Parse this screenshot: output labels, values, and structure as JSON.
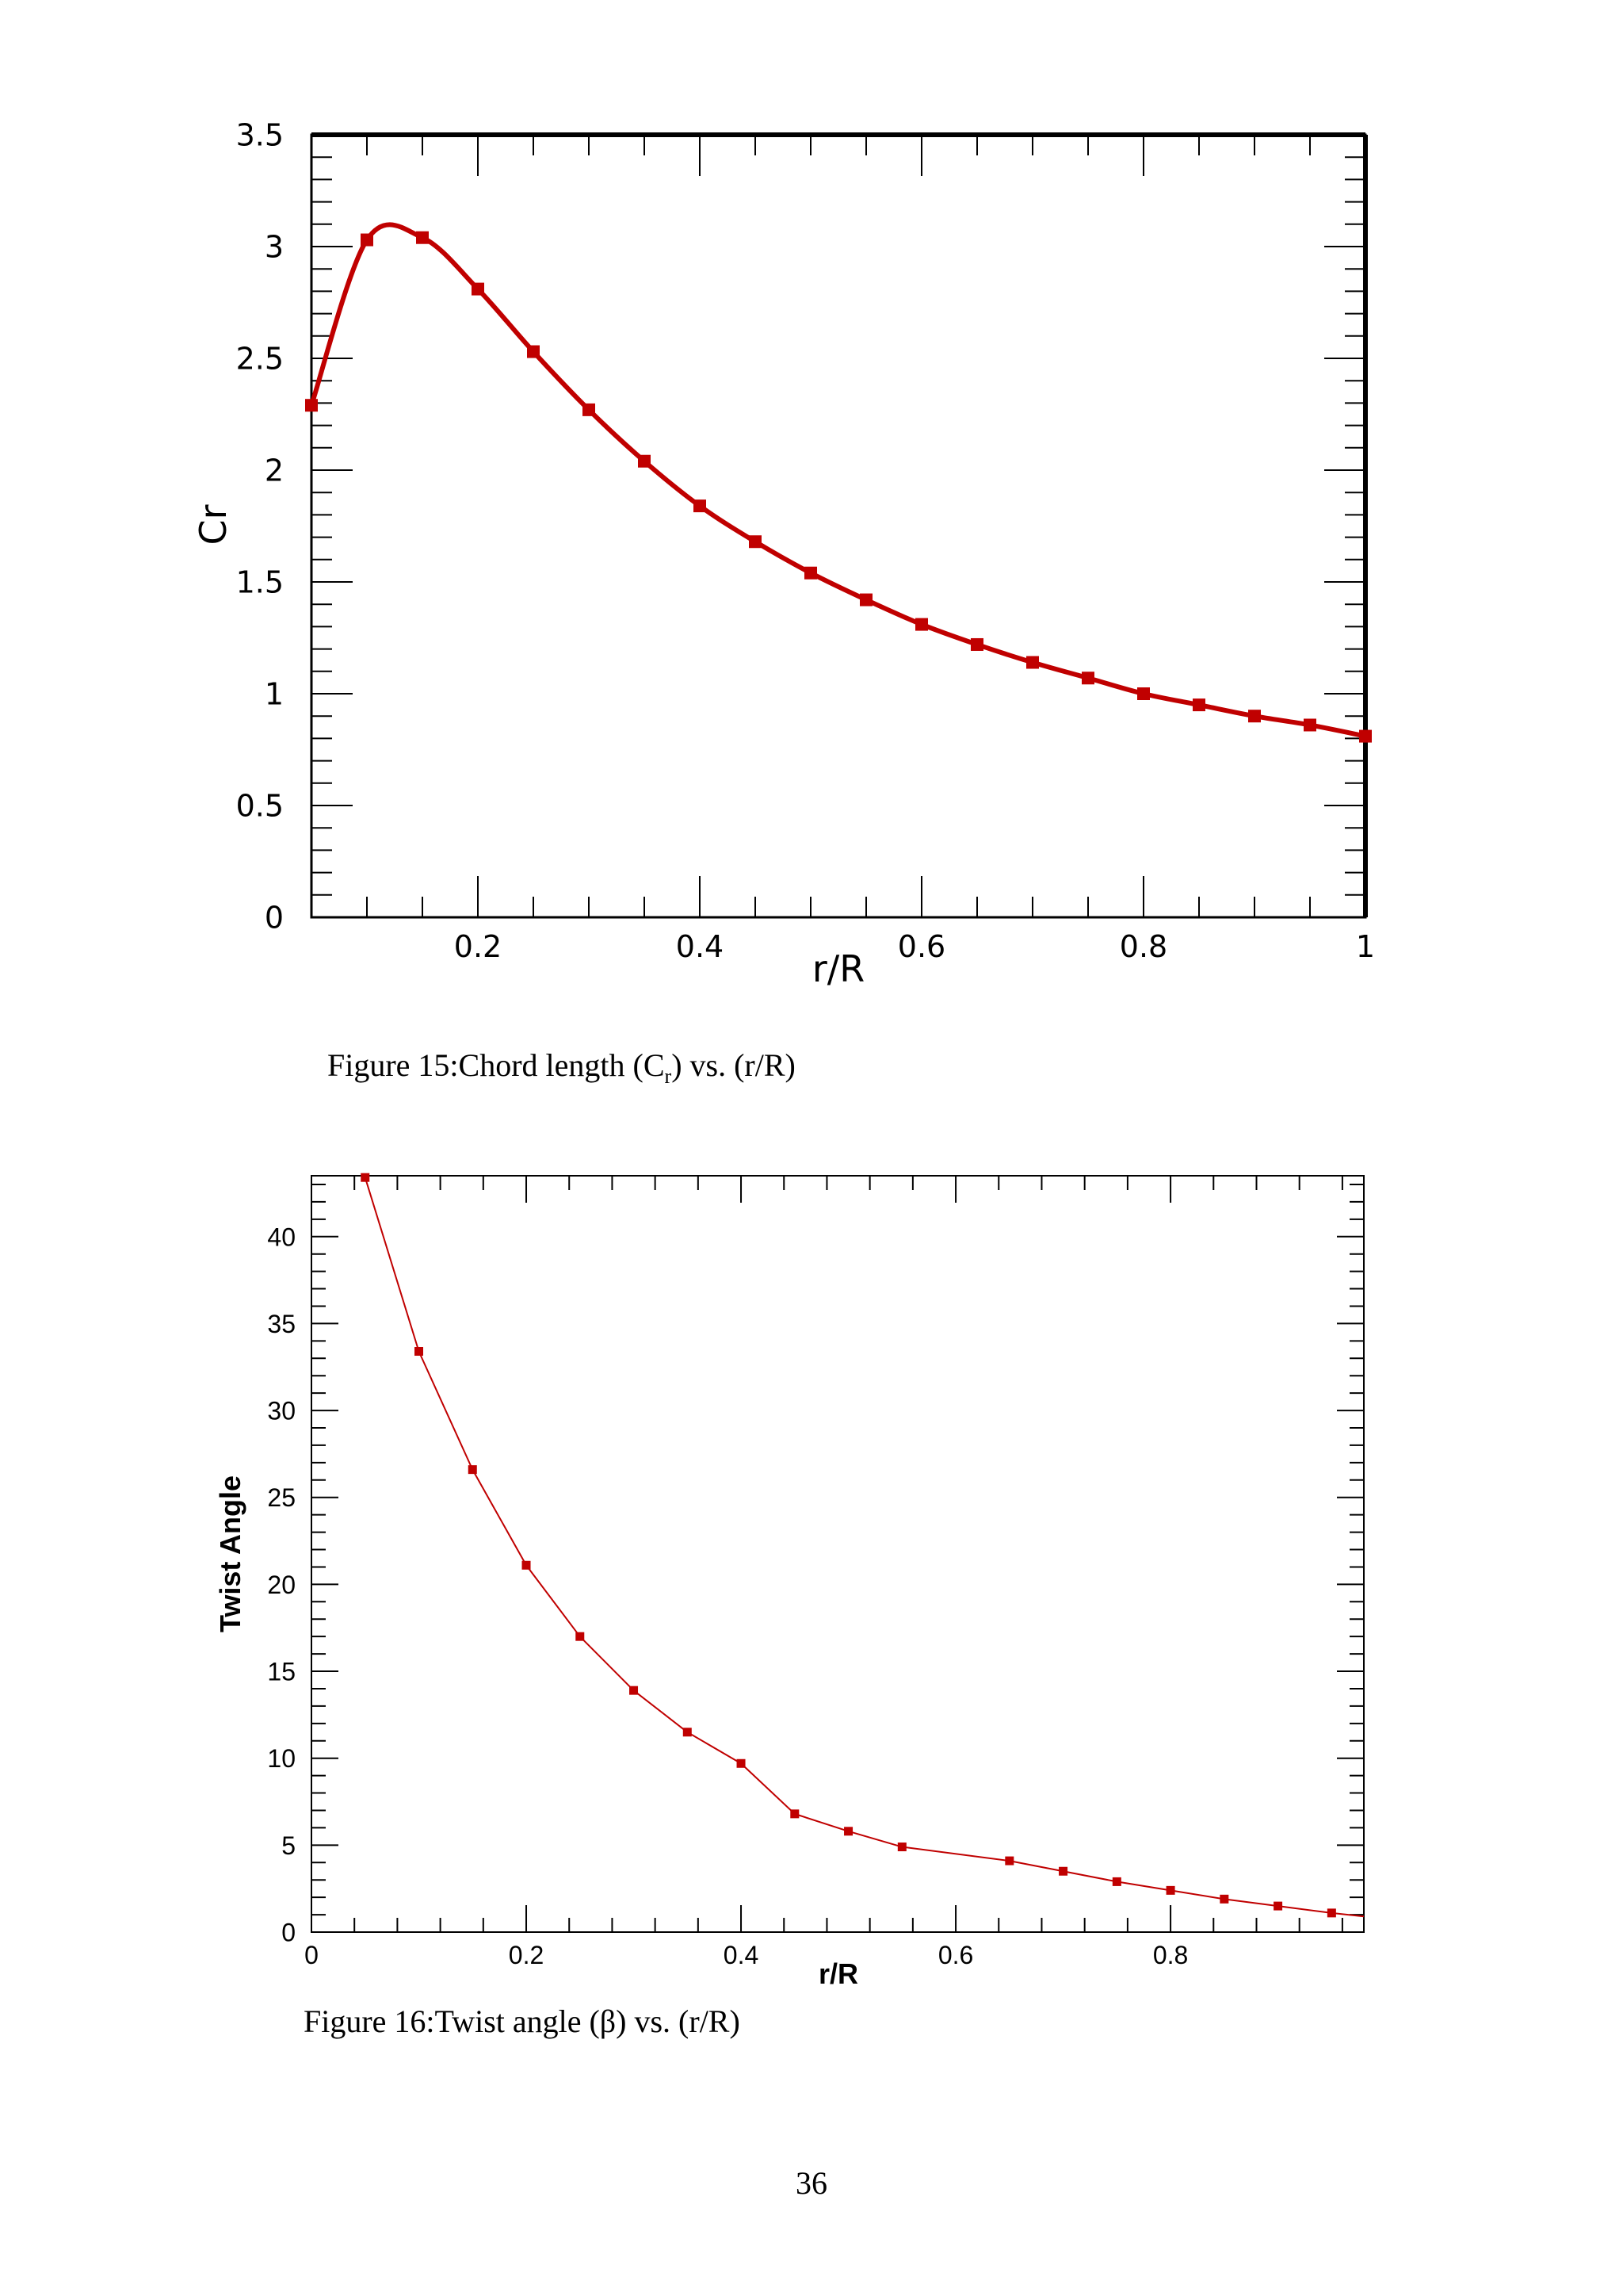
{
  "chart_data": [
    {
      "type": "line",
      "xlabel": "r/R",
      "ylabel": "Cr",
      "xlim": [
        0.05,
        1.0
      ],
      "ylim": [
        0,
        3.5
      ],
      "xticks": [
        0.2,
        0.4,
        0.6,
        0.8,
        1
      ],
      "xtick_labels": [
        "0.2",
        "0.4",
        "0.6",
        "0.8",
        "1"
      ],
      "yticks": [
        0,
        0.5,
        1,
        1.5,
        2,
        2.5,
        3,
        3.5
      ],
      "ytick_labels": [
        "0",
        "0.5",
        "1",
        "1.5",
        "2",
        "2.5",
        "3",
        "3.5"
      ],
      "grid": false,
      "color": "#c00000",
      "marker": "square",
      "x": [
        0.05,
        0.1,
        0.15,
        0.2,
        0.25,
        0.3,
        0.35,
        0.4,
        0.45,
        0.5,
        0.55,
        0.6,
        0.65,
        0.7,
        0.75,
        0.8,
        0.85,
        0.9,
        0.95,
        1.0
      ],
      "y": [
        2.29,
        3.03,
        3.04,
        2.81,
        2.53,
        2.27,
        2.04,
        1.84,
        1.68,
        1.54,
        1.42,
        1.31,
        1.22,
        1.14,
        1.07,
        1.0,
        0.95,
        0.9,
        0.86,
        0.81
      ]
    },
    {
      "type": "line",
      "xlabel": "r/R",
      "ylabel": "Twist Angle",
      "xlim": [
        0,
        0.98
      ],
      "ylim": [
        0,
        43.5
      ],
      "xticks": [
        0,
        0.2,
        0.4,
        0.6,
        0.8
      ],
      "xtick_labels": [
        "0",
        "0.2",
        "0.4",
        "0.6",
        "0.8"
      ],
      "yticks": [
        0,
        5,
        10,
        15,
        20,
        25,
        30,
        35,
        40
      ],
      "ytick_labels": [
        "0",
        "5",
        "10",
        "15",
        "20",
        "25",
        "30",
        "35",
        "40"
      ],
      "grid": false,
      "color": "#c00000",
      "marker": "square",
      "x": [
        0.05,
        0.1,
        0.15,
        0.2,
        0.25,
        0.3,
        0.35,
        0.4,
        0.45,
        0.5,
        0.55,
        0.65,
        0.7,
        0.75,
        0.8,
        0.85,
        0.9,
        0.95
      ],
      "y": [
        43.4,
        33.4,
        26.6,
        21.1,
        17.0,
        13.9,
        11.5,
        9.7,
        6.8,
        5.8,
        4.9,
        4.1,
        3.5,
        2.9,
        2.4,
        1.9,
        1.5,
        1.1
      ]
    }
  ],
  "captions": {
    "figure15_text": "Figure 15:Chord length (C",
    "figure15_sub": "r",
    "figure15_tail": ") vs. (r/R)",
    "figure16_text": "Figure 16:Twist angle (β) vs. (r/R)"
  },
  "page_number": "36"
}
